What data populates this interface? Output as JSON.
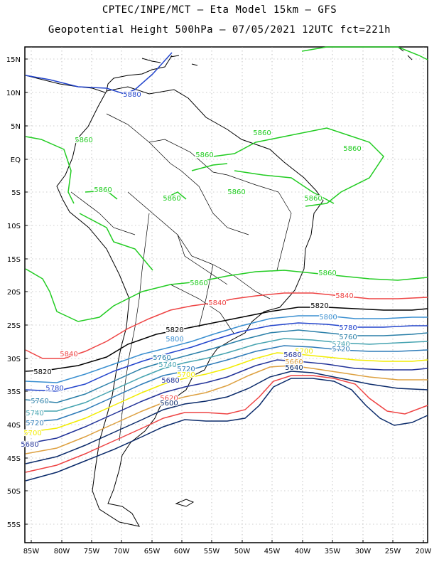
{
  "header": {
    "line1": "CPTEC/INPE/MCT –  Eta Model 15km – GFS",
    "line2": "Geopotential Height 500hPa – 07/05/2021 12UTC fct=221h"
  },
  "axes": {
    "lat_labels": [
      "15N",
      "10N",
      "5N",
      "EQ",
      "5S",
      "10S",
      "15S",
      "20S",
      "25S",
      "30S",
      "35S",
      "40S",
      "45S",
      "50S",
      "55S"
    ],
    "lon_labels": [
      "85W",
      "80W",
      "75W",
      "70W",
      "65W",
      "60W",
      "55W",
      "50W",
      "45W",
      "40W",
      "35W",
      "30W",
      "25W",
      "20W"
    ]
  },
  "contour_colors": {
    "5860": "#22cc22",
    "5840": "#ee4444",
    "5820": "#000000",
    "5800": "#3a8fd0",
    "5780": "#2244cc",
    "5760": "#2a7fa8",
    "5740": "#45a3b0",
    "5720": "#2e7bb8",
    "5700": "#f2ec00",
    "5680": "#223399",
    "5660": "#dda040",
    "5640": "#0a2a6a",
    "5620": "#ee4444",
    "5600": "#0a2a6a",
    "5880": "#2244cc"
  },
  "contour_labels": [
    {
      "text": "5880",
      "color": "5880"
    },
    {
      "text": "5860",
      "color": "5860"
    },
    {
      "text": "5860",
      "color": "5860"
    },
    {
      "text": "5860",
      "color": "5860"
    },
    {
      "text": "5860",
      "color": "5860"
    },
    {
      "text": "5860",
      "color": "5860"
    },
    {
      "text": "5860",
      "color": "5860"
    },
    {
      "text": "5860",
      "color": "5860"
    },
    {
      "text": "5860",
      "color": "5860"
    },
    {
      "text": "5860",
      "color": "5860"
    },
    {
      "text": "5860",
      "color": "5860"
    },
    {
      "text": "5840",
      "color": "5840"
    },
    {
      "text": "5840",
      "color": "5840"
    },
    {
      "text": "5840",
      "color": "5840"
    },
    {
      "text": "5820",
      "color": "5820"
    },
    {
      "text": "5820",
      "color": "5820"
    },
    {
      "text": "5820",
      "color": "5820"
    },
    {
      "text": "5800",
      "color": "5800"
    },
    {
      "text": "5800",
      "color": "5800"
    },
    {
      "text": "5780",
      "color": "5780"
    },
    {
      "text": "5780",
      "color": "5780"
    },
    {
      "text": "5760",
      "color": "5760"
    },
    {
      "text": "5760",
      "color": "5760"
    },
    {
      "text": "5760",
      "color": "5760"
    },
    {
      "text": "5740",
      "color": "5740"
    },
    {
      "text": "5740",
      "color": "5740"
    },
    {
      "text": "5740",
      "color": "5740"
    },
    {
      "text": "5720",
      "color": "5720"
    },
    {
      "text": "5720",
      "color": "5720"
    },
    {
      "text": "5720",
      "color": "5720"
    },
    {
      "text": "5700",
      "color": "5700"
    },
    {
      "text": "5700",
      "color": "5700"
    },
    {
      "text": "5700",
      "color": "5700"
    },
    {
      "text": "5680",
      "color": "5680"
    },
    {
      "text": "5680",
      "color": "5680"
    },
    {
      "text": "5680",
      "color": "5680"
    },
    {
      "text": "5660",
      "color": "5660"
    },
    {
      "text": "5640",
      "color": "5640"
    },
    {
      "text": "5620",
      "color": "5620"
    },
    {
      "text": "5600",
      "color": "5600"
    }
  ]
}
